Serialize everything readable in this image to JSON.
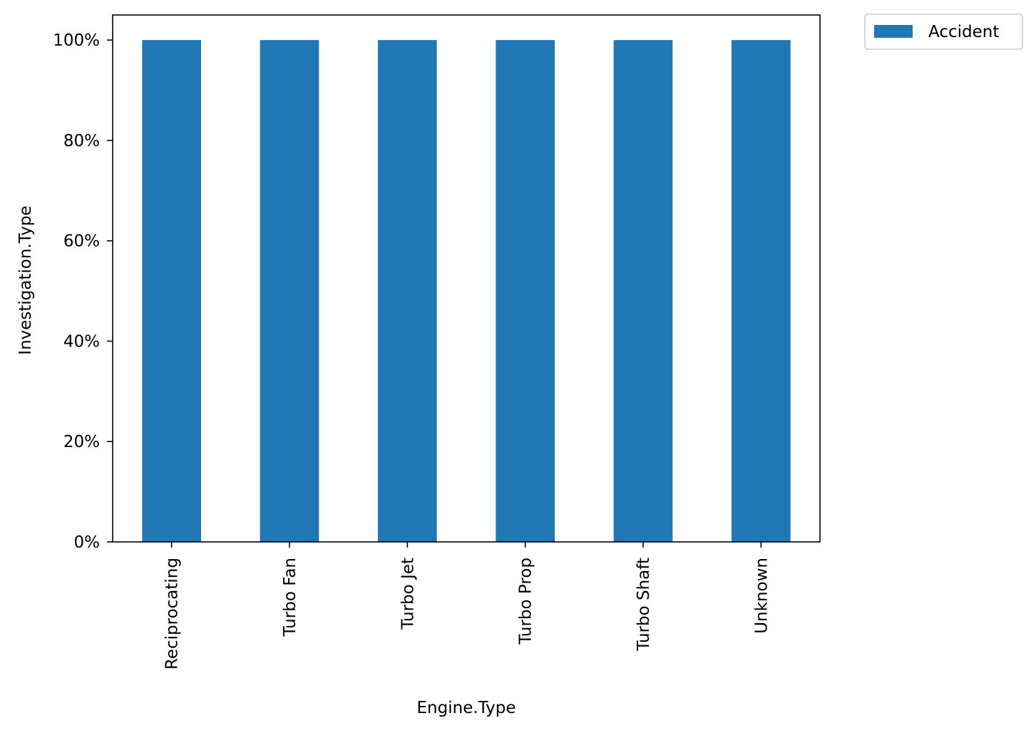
{
  "chart_data": {
    "type": "bar",
    "categories": [
      "Reciprocating",
      "Turbo Fan",
      "Turbo Jet",
      "Turbo Prop",
      "Turbo Shaft",
      "Unknown"
    ],
    "series": [
      {
        "name": "Accident",
        "values": [
          1.0,
          1.0,
          1.0,
          1.0,
          1.0,
          1.0
        ],
        "color": "#1f77b4"
      }
    ],
    "xlabel": "Engine.Type",
    "ylabel": "Investigation.Type",
    "ylim": [
      0,
      1.05
    ],
    "yticks": [
      0,
      0.2,
      0.4,
      0.6,
      0.8,
      1.0
    ],
    "ytick_labels": [
      "0%",
      "20%",
      "40%",
      "60%",
      "80%",
      "100%"
    ],
    "grid": false,
    "legend_position": "outside-top-right"
  }
}
